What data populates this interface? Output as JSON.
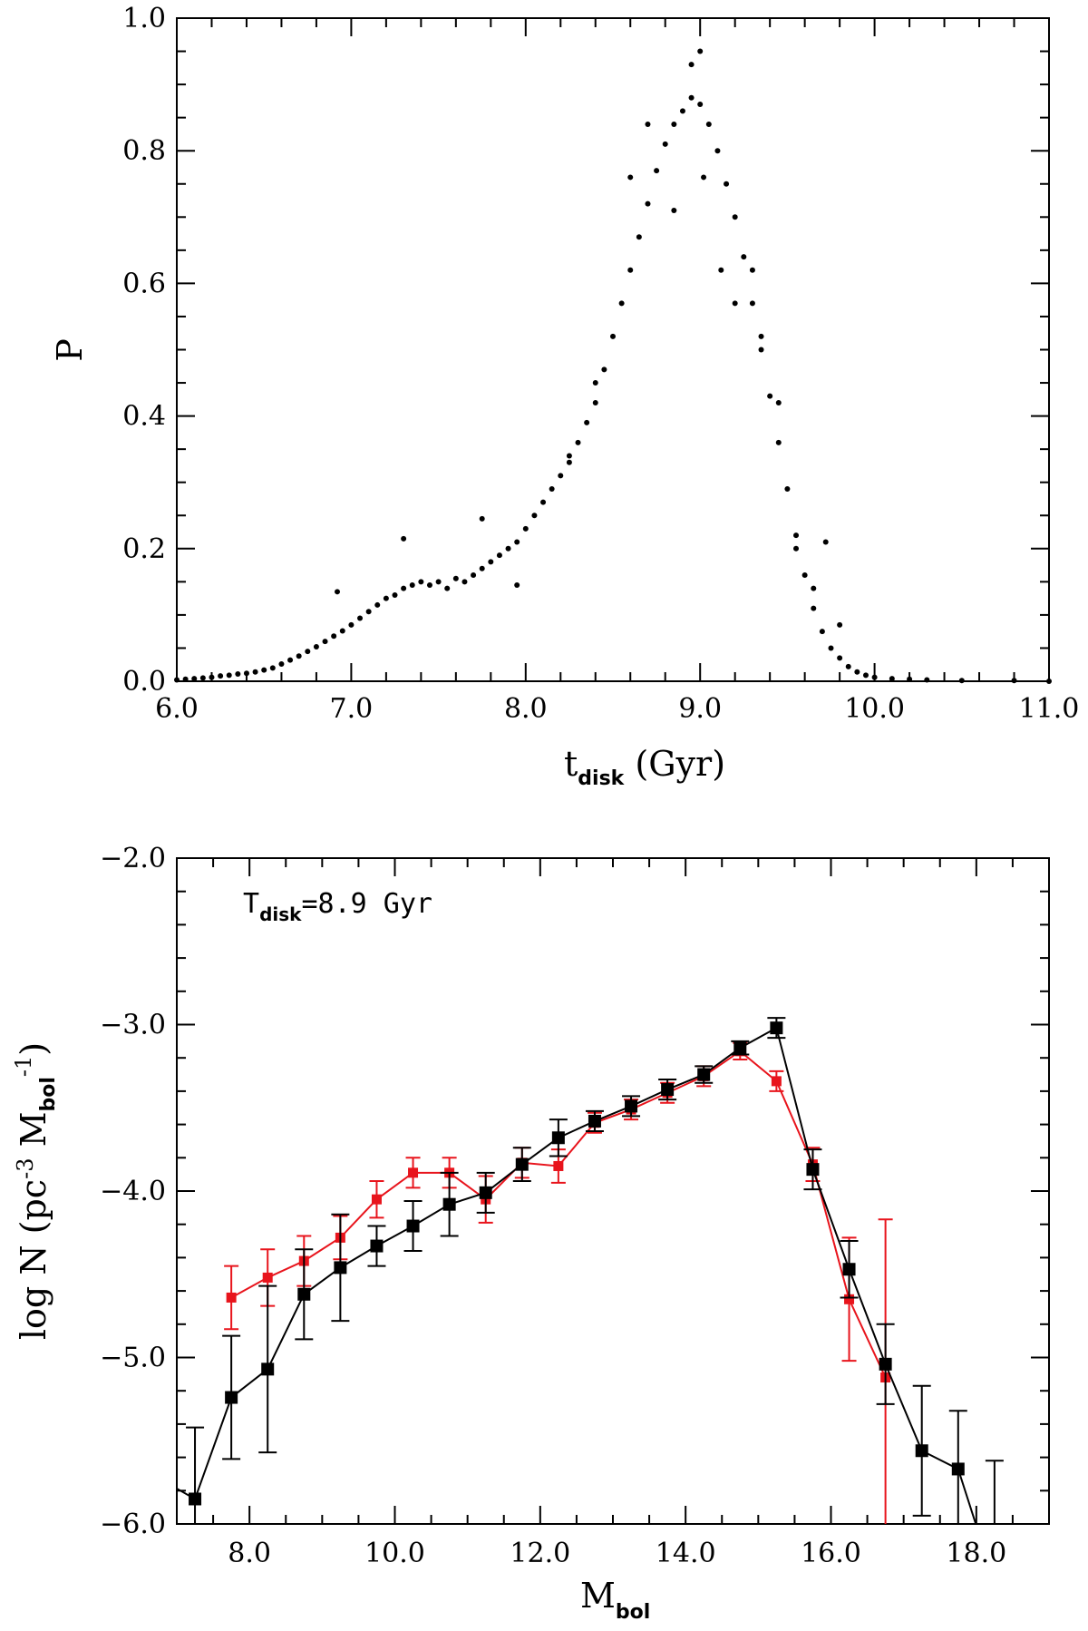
{
  "chart_data": [
    {
      "type": "scatter",
      "name": "top-panel",
      "xlabel": "t",
      "xlabel_sub": "disk",
      "xlabel_unit": " (Gyr)",
      "ylabel": "P",
      "xlim": [
        6.0,
        11.0
      ],
      "ylim": [
        0.0,
        1.0
      ],
      "x_ticks": [
        6.0,
        7.0,
        8.0,
        9.0,
        10.0,
        11.0
      ],
      "x_tick_labels": [
        "6.0",
        "7.0",
        "8.0",
        "9.0",
        "10.0",
        "11.0"
      ],
      "y_ticks": [
        0.0,
        0.2,
        0.4,
        0.6,
        0.8,
        1.0
      ],
      "y_tick_labels": [
        "0.0",
        "0.2",
        "0.4",
        "0.6",
        "0.8",
        "1.0"
      ],
      "points": [
        [
          6.0,
          0.002
        ],
        [
          6.05,
          0.003
        ],
        [
          6.1,
          0.004
        ],
        [
          6.15,
          0.005
        ],
        [
          6.2,
          0.006
        ],
        [
          6.25,
          0.008
        ],
        [
          6.3,
          0.009
        ],
        [
          6.35,
          0.011
        ],
        [
          6.4,
          0.012
        ],
        [
          6.45,
          0.014
        ],
        [
          6.5,
          0.017
        ],
        [
          6.55,
          0.02
        ],
        [
          6.6,
          0.026
        ],
        [
          6.65,
          0.032
        ],
        [
          6.7,
          0.038
        ],
        [
          6.75,
          0.045
        ],
        [
          6.8,
          0.052
        ],
        [
          6.85,
          0.06
        ],
        [
          6.9,
          0.068
        ],
        [
          6.95,
          0.076
        ],
        [
          7.0,
          0.085
        ],
        [
          7.05,
          0.095
        ],
        [
          7.1,
          0.105
        ],
        [
          7.15,
          0.115
        ],
        [
          7.2,
          0.125
        ],
        [
          7.25,
          0.13
        ],
        [
          7.3,
          0.14
        ],
        [
          7.35,
          0.145
        ],
        [
          7.4,
          0.15
        ],
        [
          7.45,
          0.145
        ],
        [
          7.5,
          0.15
        ],
        [
          7.55,
          0.14
        ],
        [
          7.6,
          0.155
        ],
        [
          7.65,
          0.15
        ],
        [
          7.7,
          0.16
        ],
        [
          7.75,
          0.17
        ],
        [
          7.8,
          0.18
        ],
        [
          7.85,
          0.19
        ],
        [
          7.9,
          0.2
        ],
        [
          7.95,
          0.21
        ],
        [
          8.0,
          0.23
        ],
        [
          8.05,
          0.25
        ],
        [
          8.1,
          0.27
        ],
        [
          8.15,
          0.29
        ],
        [
          8.2,
          0.31
        ],
        [
          8.25,
          0.33
        ],
        [
          8.3,
          0.36
        ],
        [
          8.35,
          0.39
        ],
        [
          8.4,
          0.42
        ],
        [
          8.45,
          0.47
        ],
        [
          8.5,
          0.52
        ],
        [
          8.55,
          0.57
        ],
        [
          8.6,
          0.62
        ],
        [
          8.65,
          0.67
        ],
        [
          8.7,
          0.72
        ],
        [
          8.75,
          0.77
        ],
        [
          8.8,
          0.81
        ],
        [
          8.85,
          0.84
        ],
        [
          8.9,
          0.86
        ],
        [
          8.95,
          0.88
        ],
        [
          9.0,
          0.87
        ],
        [
          9.05,
          0.84
        ],
        [
          9.1,
          0.8
        ],
        [
          9.15,
          0.75
        ],
        [
          9.2,
          0.7
        ],
        [
          9.25,
          0.64
        ],
        [
          9.3,
          0.57
        ],
        [
          9.35,
          0.5
        ],
        [
          9.4,
          0.43
        ],
        [
          9.45,
          0.36
        ],
        [
          9.5,
          0.29
        ],
        [
          9.55,
          0.22
        ],
        [
          9.6,
          0.16
        ],
        [
          9.65,
          0.11
        ],
        [
          9.7,
          0.075
        ],
        [
          9.75,
          0.05
        ],
        [
          9.8,
          0.035
        ],
        [
          9.85,
          0.022
        ],
        [
          9.9,
          0.014
        ],
        [
          9.95,
          0.009
        ],
        [
          10.0,
          0.006
        ],
        [
          10.1,
          0.004
        ],
        [
          10.2,
          0.003
        ],
        [
          10.3,
          0.002
        ],
        [
          10.5,
          0.001
        ],
        [
          10.8,
          0.001
        ],
        [
          11.0,
          0.0
        ],
        [
          6.92,
          0.135
        ],
        [
          7.3,
          0.215
        ],
        [
          7.75,
          0.245
        ],
        [
          7.95,
          0.145
        ],
        [
          8.25,
          0.34
        ],
        [
          8.4,
          0.45
        ],
        [
          8.6,
          0.76
        ],
        [
          8.7,
          0.84
        ],
        [
          8.85,
          0.71
        ],
        [
          8.95,
          0.93
        ],
        [
          9.0,
          0.95
        ],
        [
          9.02,
          0.76
        ],
        [
          9.12,
          0.62
        ],
        [
          9.2,
          0.57
        ],
        [
          9.3,
          0.62
        ],
        [
          9.35,
          0.52
        ],
        [
          9.45,
          0.42
        ],
        [
          9.55,
          0.2
        ],
        [
          9.65,
          0.14
        ],
        [
          9.72,
          0.21
        ],
        [
          9.8,
          0.085
        ]
      ]
    },
    {
      "type": "line",
      "name": "bottom-panel",
      "annotation": "T",
      "annotation_sub": "disk",
      "annotation_value": "=8.9 Gyr",
      "xlabel": "M",
      "xlabel_sub": "bol",
      "ylabel": "log N (pc",
      "ylabel_exp": "-3",
      "ylabel_mid": " M",
      "ylabel_sub": "bol",
      "ylabel_exp2": "-1",
      "ylabel_end": ")",
      "xlim": [
        7.0,
        19.0
      ],
      "ylim": [
        -6.0,
        -2.0
      ],
      "x_ticks": [
        8.0,
        10.0,
        12.0,
        14.0,
        16.0,
        18.0
      ],
      "x_tick_labels": [
        "8.0",
        "10.0",
        "12.0",
        "14.0",
        "16.0",
        "18.0"
      ],
      "y_ticks": [
        -6.0,
        -5.0,
        -4.0,
        -3.0,
        -2.0
      ],
      "y_tick_labels": [
        "-6.0",
        "-5.0",
        "-4.0",
        "-3.0",
        "-2.0"
      ],
      "series": [
        {
          "name": "model",
          "color": "#000000",
          "x": [
            7.25,
            7.75,
            8.25,
            8.75,
            9.25,
            9.75,
            10.25,
            10.75,
            11.25,
            11.75,
            12.25,
            12.75,
            13.25,
            13.75,
            14.25,
            14.75,
            15.25,
            15.75,
            16.25,
            16.75,
            17.25,
            17.75
          ],
          "y": [
            -5.85,
            -5.24,
            -5.07,
            -4.62,
            -4.46,
            -4.33,
            -4.21,
            -4.08,
            -4.01,
            -3.84,
            -3.68,
            -3.58,
            -3.49,
            -3.39,
            -3.3,
            -3.14,
            -3.02,
            -3.87,
            -4.47,
            -5.04,
            -5.56,
            -5.67
          ],
          "err": [
            0.43,
            0.37,
            0.5,
            0.27,
            0.32,
            0.12,
            0.15,
            0.19,
            0.12,
            0.1,
            0.11,
            0.06,
            0.06,
            0.06,
            0.05,
            0.04,
            0.06,
            0.12,
            0.17,
            0.24,
            0.39,
            0.35
          ],
          "extra_x": [
            6.85,
            18.25
          ],
          "extra_y": [
            -5.75,
            -6.35
          ],
          "extra_err": [
            0.33,
            0.73
          ]
        },
        {
          "name": "observed",
          "color": "#e8141c",
          "x": [
            7.75,
            8.25,
            8.75,
            9.25,
            9.75,
            10.25,
            10.75,
            11.25,
            11.75,
            12.25,
            12.75,
            13.25,
            13.75,
            14.25,
            14.75,
            15.25,
            15.75,
            16.25,
            16.75
          ],
          "y": [
            -4.64,
            -4.52,
            -4.42,
            -4.28,
            -4.05,
            -3.89,
            -3.89,
            -4.05,
            -3.83,
            -3.85,
            -3.59,
            -3.51,
            -3.41,
            -3.31,
            -3.16,
            -3.34,
            -3.84,
            -4.65,
            -5.12
          ],
          "err": [
            0.19,
            0.17,
            0.15,
            0.13,
            0.11,
            0.09,
            0.09,
            0.14,
            0.09,
            0.1,
            0.06,
            0.06,
            0.06,
            0.06,
            0.05,
            0.06,
            0.1,
            0.37,
            0.95
          ]
        }
      ]
    }
  ]
}
